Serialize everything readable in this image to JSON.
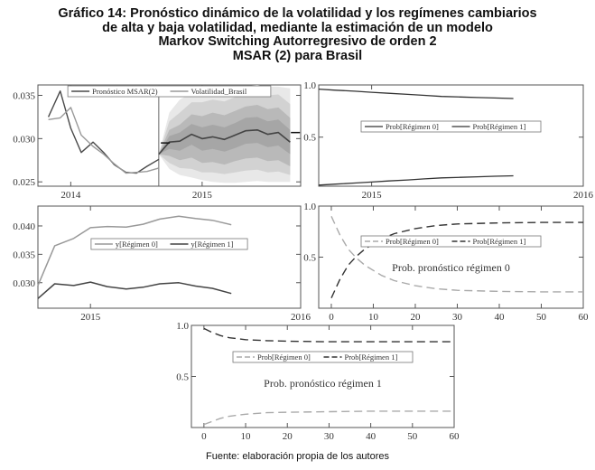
{
  "title_lines": [
    "Gráfico 14: Pronóstico dinámico de la volatilidad y los regímenes cambiarios",
    "de alta y baja volatilidad, mediante la estimación de un modelo",
    "Markov Switching Autorregresivo de orden 2",
    "MSAR (2) para Brasil"
  ],
  "source": "Fuente: elaboración propia de los autores",
  "chart_data": [
    {
      "id": "forecast",
      "type": "line",
      "x_tick_labels": [
        "2014",
        "2015"
      ],
      "xlim": [
        2013.75,
        2015.75
      ],
      "x_ticks": [
        2014,
        2015
      ],
      "ylim": [
        0.0245,
        0.0362
      ],
      "y_ticks": [
        0.025,
        0.03,
        0.035
      ],
      "y_tick_labels": [
        "0.025",
        "0.030",
        "0.035"
      ],
      "forecast_start": 2014.67,
      "legend": "top",
      "series": [
        {
          "name": "Pronóstico MSAR(2)",
          "color": "#4a4a4a",
          "width": 1.4,
          "x": [
            2013.83,
            2013.92,
            2014.0,
            2014.08,
            2014.17,
            2014.25,
            2014.33,
            2014.42,
            2014.5,
            2014.58,
            2014.67
          ],
          "y": [
            0.0325,
            0.0355,
            0.0312,
            0.0284,
            0.0296,
            0.0284,
            0.027,
            0.0261,
            0.026,
            0.0268,
            0.0276
          ]
        },
        {
          "name": "Volatilidad_Brasil",
          "color": "#9a9a9a",
          "width": 1.4,
          "x": [
            2013.83,
            2013.92,
            2014.0,
            2014.08,
            2014.17,
            2014.25,
            2014.33,
            2014.42,
            2014.5,
            2014.58,
            2014.67
          ],
          "y": [
            0.0322,
            0.0324,
            0.0336,
            0.0304,
            0.0291,
            0.0282,
            0.0271,
            0.026,
            0.0261,
            0.0262,
            0.0266
          ]
        },
        {
          "name": "",
          "color": "#444444",
          "width": 1.6,
          "x": [
            2014.67,
            2014.75,
            2014.83,
            2014.92,
            2015.0,
            2015.08,
            2015.17,
            2015.25,
            2015.33,
            2015.42,
            2015.5,
            2015.58,
            2015.67
          ],
          "y": [
            0.0282,
            0.0296,
            0.0297,
            0.0305,
            0.03,
            0.0302,
            0.0299,
            0.0304,
            0.0309,
            0.031,
            0.0305,
            0.0307,
            0.0296
          ]
        }
      ],
      "bands": [
        {
          "color": "#e8e8e8",
          "lower": [
            0.0282,
            0.0265,
            0.0258,
            0.0255,
            0.0252,
            0.025,
            0.0249,
            0.0249,
            0.025,
            0.0251,
            0.025,
            0.025,
            0.025
          ],
          "upper": [
            0.0282,
            0.033,
            0.0345,
            0.0353,
            0.0356,
            0.0358,
            0.0357,
            0.0359,
            0.0361,
            0.0362,
            0.036,
            0.036,
            0.0358
          ]
        },
        {
          "color": "#d2d2d2",
          "lower": [
            0.0282,
            0.0272,
            0.0266,
            0.0265,
            0.0261,
            0.0261,
            0.0259,
            0.0261,
            0.0263,
            0.0264,
            0.0261,
            0.0262,
            0.0258
          ],
          "upper": [
            0.0282,
            0.032,
            0.033,
            0.0342,
            0.0342,
            0.0345,
            0.0343,
            0.0348,
            0.0352,
            0.0354,
            0.035,
            0.0351,
            0.034
          ]
        },
        {
          "color": "#b9b9b9",
          "lower": [
            0.0282,
            0.028,
            0.0275,
            0.0278,
            0.0272,
            0.0273,
            0.027,
            0.0274,
            0.0277,
            0.0278,
            0.0274,
            0.0275,
            0.0268
          ],
          "upper": [
            0.0282,
            0.031,
            0.0316,
            0.0328,
            0.0326,
            0.033,
            0.0327,
            0.0332,
            0.0337,
            0.0339,
            0.0334,
            0.0336,
            0.0324
          ]
        },
        {
          "color": "#a6a6a6",
          "lower": [
            0.0282,
            0.0288,
            0.0286,
            0.0293,
            0.0286,
            0.0288,
            0.0285,
            0.0289,
            0.0294,
            0.0295,
            0.029,
            0.0292,
            0.0282
          ],
          "upper": [
            0.0282,
            0.0303,
            0.0307,
            0.0317,
            0.0313,
            0.0316,
            0.0313,
            0.0318,
            0.0324,
            0.0325,
            0.032,
            0.0322,
            0.031
          ]
        }
      ],
      "markers": [
        {
          "x": 2014.72,
          "y": 0.0295
        },
        {
          "x": 2015.71,
          "y": 0.0307
        }
      ]
    },
    {
      "id": "regime-probs",
      "type": "line",
      "x_tick_labels": [
        "2015",
        "2016"
      ],
      "xlim": [
        2014.75,
        2016.0
      ],
      "x_ticks": [
        2015,
        2016
      ],
      "ylim": [
        0.03,
        1.0
      ],
      "y_ticks": [
        0.5,
        1.0
      ],
      "y_tick_labels": [
        "0.5",
        "1.0"
      ],
      "legend": "middle-right",
      "series": [
        {
          "name": "Prob[Régimen 0]",
          "color": "#333333",
          "width": 1.3,
          "x": [
            2014.75,
            2014.83,
            2014.92,
            2015.0,
            2015.08,
            2015.17,
            2015.25,
            2015.33,
            2015.42,
            2015.5,
            2015.58,
            2015.67
          ],
          "y": [
            0.96,
            0.95,
            0.94,
            0.93,
            0.92,
            0.91,
            0.9,
            0.89,
            0.885,
            0.88,
            0.875,
            0.87
          ]
        },
        {
          "name": "Prob[Régimen 1]",
          "color": "#333333",
          "width": 1.3,
          "x": [
            2014.75,
            2014.83,
            2014.92,
            2015.0,
            2015.08,
            2015.17,
            2015.25,
            2015.33,
            2015.42,
            2015.5,
            2015.58,
            2015.67
          ],
          "y": [
            0.04,
            0.05,
            0.06,
            0.07,
            0.08,
            0.09,
            0.1,
            0.11,
            0.115,
            0.12,
            0.125,
            0.13
          ]
        }
      ]
    },
    {
      "id": "regime-levels",
      "type": "line",
      "x_tick_labels": [
        "2015",
        "2016"
      ],
      "xlim": [
        2014.75,
        2016.0
      ],
      "x_ticks": [
        2015,
        2016
      ],
      "ylim": [
        0.0255,
        0.0435
      ],
      "y_ticks": [
        0.03,
        0.035,
        0.04
      ],
      "y_tick_labels": [
        "0.030",
        "0.035",
        "0.040"
      ],
      "legend": "middle",
      "series": [
        {
          "name": "y[Régimen 0]",
          "color": "#999999",
          "width": 1.5,
          "x": [
            2014.75,
            2014.83,
            2014.92,
            2015.0,
            2015.08,
            2015.17,
            2015.25,
            2015.33,
            2015.42,
            2015.5,
            2015.58,
            2015.67
          ],
          "y": [
            0.0295,
            0.0365,
            0.0378,
            0.0397,
            0.0399,
            0.0398,
            0.0403,
            0.0412,
            0.0417,
            0.0413,
            0.041,
            0.0402
          ]
        },
        {
          "name": "y[Régimen 1]",
          "color": "#444444",
          "width": 1.5,
          "x": [
            2014.75,
            2014.83,
            2014.92,
            2015.0,
            2015.08,
            2015.17,
            2015.25,
            2015.33,
            2015.42,
            2015.5,
            2015.58,
            2015.67
          ],
          "y": [
            0.0272,
            0.0298,
            0.0295,
            0.0301,
            0.0293,
            0.0289,
            0.0292,
            0.0298,
            0.03,
            0.0294,
            0.029,
            0.0281
          ]
        }
      ]
    },
    {
      "id": "forecast-prob-regime0",
      "type": "line",
      "xlim": [
        -3,
        60
      ],
      "x_ticks": [
        0,
        10,
        20,
        30,
        40,
        50,
        60
      ],
      "x_tick_labels": [
        "0",
        "10",
        "20",
        "30",
        "40",
        "50",
        "60"
      ],
      "ylim": [
        0.0,
        1.0
      ],
      "y_ticks": [
        0.5,
        1.0
      ],
      "y_tick_labels": [
        "0.5",
        "1.0"
      ],
      "legend": "top",
      "annotation": "Prob. pronóstico régimen 0",
      "series": [
        {
          "name": "Prob[Régimen 0]",
          "color": "#aaaaaa",
          "dash": "9,5",
          "width": 1.4,
          "x": [
            0,
            2,
            4,
            6,
            8,
            10,
            12,
            15,
            20,
            25,
            30,
            40,
            50,
            60
          ],
          "y": [
            0.9,
            0.72,
            0.58,
            0.49,
            0.42,
            0.37,
            0.32,
            0.27,
            0.22,
            0.19,
            0.175,
            0.165,
            0.16,
            0.16
          ]
        },
        {
          "name": "Prob[Régimen 1]",
          "color": "#333333",
          "dash": "9,5",
          "width": 1.4,
          "x": [
            0,
            2,
            4,
            6,
            8,
            10,
            12,
            15,
            20,
            25,
            30,
            40,
            50,
            60
          ],
          "y": [
            0.1,
            0.28,
            0.42,
            0.51,
            0.58,
            0.63,
            0.68,
            0.73,
            0.78,
            0.81,
            0.825,
            0.835,
            0.84,
            0.84
          ]
        }
      ]
    },
    {
      "id": "forecast-prob-regime1",
      "type": "line",
      "xlim": [
        -3,
        60
      ],
      "x_ticks": [
        0,
        10,
        20,
        30,
        40,
        50,
        60
      ],
      "x_tick_labels": [
        "0",
        "10",
        "20",
        "30",
        "40",
        "50",
        "60"
      ],
      "ylim": [
        0.0,
        1.0
      ],
      "y_ticks": [
        0.5,
        1.0
      ],
      "y_tick_labels": [
        "0.5",
        "1.0"
      ],
      "legend": "top",
      "annotation": "Prob. pronóstico régimen 1",
      "series": [
        {
          "name": "Prob[Régimen 0]",
          "color": "#aaaaaa",
          "dash": "9,5",
          "width": 1.4,
          "x": [
            0,
            2,
            4,
            6,
            8,
            10,
            15,
            20,
            30,
            40,
            50,
            60
          ],
          "y": [
            0.03,
            0.06,
            0.09,
            0.11,
            0.12,
            0.13,
            0.145,
            0.15,
            0.155,
            0.16,
            0.16,
            0.16
          ]
        },
        {
          "name": "Prob[Régimen 1]",
          "color": "#333333",
          "dash": "9,5",
          "width": 1.4,
          "x": [
            0,
            2,
            4,
            6,
            8,
            10,
            15,
            20,
            30,
            40,
            50,
            60
          ],
          "y": [
            0.97,
            0.93,
            0.9,
            0.88,
            0.87,
            0.86,
            0.85,
            0.845,
            0.84,
            0.84,
            0.84,
            0.84
          ]
        }
      ]
    }
  ]
}
